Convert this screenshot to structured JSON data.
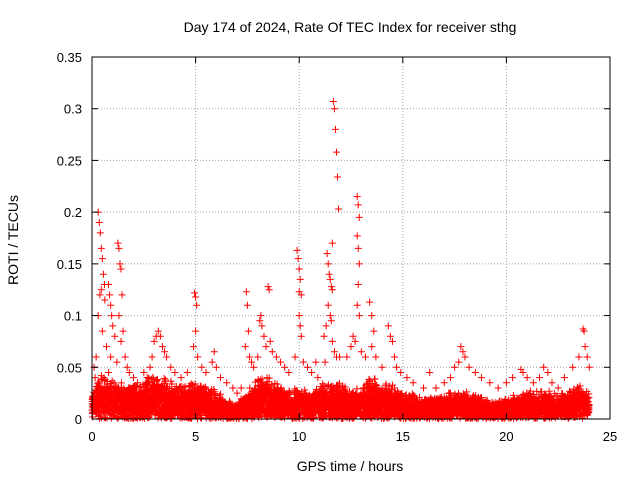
{
  "chart_data": {
    "type": "scatter",
    "title": "Day 174 of 2024, Rate Of TEC Index for receiver sthg",
    "xlabel": "GPS time / hours",
    "ylabel": "ROTI / TECUs",
    "xlim": [
      0,
      25
    ],
    "ylim": [
      0,
      0.35
    ],
    "xticks": [
      0,
      5,
      10,
      15,
      20,
      25
    ],
    "yticks": [
      0,
      0.05,
      0.1,
      0.15,
      0.2,
      0.25,
      0.3,
      0.35
    ],
    "xtick_labels": [
      "0",
      "5",
      "10",
      "15",
      "20",
      "25"
    ],
    "ytick_labels": [
      "0",
      "0.05",
      "0.1",
      "0.15",
      "0.2",
      "0.25",
      "0.3",
      "0.35"
    ],
    "grid": true,
    "marker": "+",
    "marker_color": "#ff0000",
    "series": [
      {
        "name": "ROTI",
        "points": [
          [
            0.3,
            0.2
          ],
          [
            0.35,
            0.19
          ],
          [
            0.4,
            0.18
          ],
          [
            0.45,
            0.165
          ],
          [
            0.5,
            0.155
          ],
          [
            0.55,
            0.14
          ],
          [
            0.6,
            0.13
          ],
          [
            0.45,
            0.125
          ],
          [
            0.38,
            0.12
          ],
          [
            0.62,
            0.115
          ],
          [
            0.3,
            0.1
          ],
          [
            0.5,
            0.085
          ],
          [
            0.7,
            0.07
          ],
          [
            0.2,
            0.06
          ],
          [
            0.1,
            0.05
          ],
          [
            0.8,
            0.045
          ],
          [
            0.15,
            0.04
          ],
          [
            0.8,
            0.13
          ],
          [
            0.85,
            0.12
          ],
          [
            0.9,
            0.11
          ],
          [
            0.95,
            0.1
          ],
          [
            1.0,
            0.09
          ],
          [
            1.1,
            0.08
          ],
          [
            0.9,
            0.06
          ],
          [
            1.25,
            0.17
          ],
          [
            1.3,
            0.165
          ],
          [
            1.35,
            0.15
          ],
          [
            1.4,
            0.145
          ],
          [
            1.45,
            0.12
          ],
          [
            1.3,
            0.1
          ],
          [
            1.5,
            0.085
          ],
          [
            1.4,
            0.075
          ],
          [
            1.6,
            0.06
          ],
          [
            1.2,
            0.055
          ],
          [
            1.7,
            0.05
          ],
          [
            1.8,
            0.045
          ],
          [
            2.0,
            0.04
          ],
          [
            2.2,
            0.035
          ],
          [
            2.5,
            0.045
          ],
          [
            2.8,
            0.05
          ],
          [
            2.9,
            0.06
          ],
          [
            3.0,
            0.075
          ],
          [
            3.1,
            0.08
          ],
          [
            3.2,
            0.085
          ],
          [
            3.3,
            0.08
          ],
          [
            3.4,
            0.07
          ],
          [
            3.5,
            0.065
          ],
          [
            3.6,
            0.06
          ],
          [
            3.8,
            0.05
          ],
          [
            4.0,
            0.045
          ],
          [
            4.3,
            0.04
          ],
          [
            4.6,
            0.045
          ],
          [
            4.95,
            0.122
          ],
          [
            5.0,
            0.118
          ],
          [
            5.05,
            0.11
          ],
          [
            5.0,
            0.085
          ],
          [
            4.9,
            0.07
          ],
          [
            5.1,
            0.06
          ],
          [
            5.3,
            0.05
          ],
          [
            5.5,
            0.045
          ],
          [
            5.8,
            0.055
          ],
          [
            5.9,
            0.065
          ],
          [
            6.0,
            0.05
          ],
          [
            6.2,
            0.04
          ],
          [
            6.5,
            0.035
          ],
          [
            6.8,
            0.03
          ],
          [
            7.0,
            0.025
          ],
          [
            7.2,
            0.03
          ],
          [
            7.45,
            0.123
          ],
          [
            7.5,
            0.11
          ],
          [
            7.55,
            0.085
          ],
          [
            7.4,
            0.07
          ],
          [
            7.6,
            0.06
          ],
          [
            7.7,
            0.055
          ],
          [
            7.8,
            0.05
          ],
          [
            8.0,
            0.06
          ],
          [
            8.1,
            0.095
          ],
          [
            8.15,
            0.1
          ],
          [
            8.2,
            0.09
          ],
          [
            8.3,
            0.08
          ],
          [
            8.4,
            0.07
          ],
          [
            8.5,
            0.128
          ],
          [
            8.55,
            0.125
          ],
          [
            8.6,
            0.075
          ],
          [
            8.7,
            0.065
          ],
          [
            8.9,
            0.06
          ],
          [
            9.1,
            0.055
          ],
          [
            9.3,
            0.05
          ],
          [
            9.5,
            0.045
          ],
          [
            9.9,
            0.163
          ],
          [
            9.95,
            0.155
          ],
          [
            10.0,
            0.145
          ],
          [
            10.05,
            0.135
          ],
          [
            10.0,
            0.123
          ],
          [
            10.1,
            0.12
          ],
          [
            10.0,
            0.1
          ],
          [
            10.05,
            0.09
          ],
          [
            10.1,
            0.08
          ],
          [
            9.8,
            0.06
          ],
          [
            10.2,
            0.055
          ],
          [
            10.4,
            0.05
          ],
          [
            10.6,
            0.045
          ],
          [
            10.8,
            0.055
          ],
          [
            10.9,
            0.04
          ],
          [
            11.35,
            0.16
          ],
          [
            11.4,
            0.15
          ],
          [
            11.45,
            0.14
          ],
          [
            11.5,
            0.135
          ],
          [
            11.55,
            0.128
          ],
          [
            11.6,
            0.125
          ],
          [
            11.4,
            0.11
          ],
          [
            11.5,
            0.1
          ],
          [
            11.55,
            0.095
          ],
          [
            11.3,
            0.09
          ],
          [
            11.2,
            0.08
          ],
          [
            11.6,
            0.075
          ],
          [
            11.7,
            0.065
          ],
          [
            11.8,
            0.06
          ],
          [
            11.25,
            0.055
          ],
          [
            11.65,
            0.307
          ],
          [
            11.7,
            0.3
          ],
          [
            11.75,
            0.28
          ],
          [
            11.8,
            0.258
          ],
          [
            11.85,
            0.234
          ],
          [
            11.9,
            0.203
          ],
          [
            11.6,
            0.17
          ],
          [
            11.95,
            0.06
          ],
          [
            12.3,
            0.06
          ],
          [
            12.5,
            0.07
          ],
          [
            12.6,
            0.08
          ],
          [
            12.8,
            0.215
          ],
          [
            12.85,
            0.207
          ],
          [
            12.9,
            0.195
          ],
          [
            12.8,
            0.177
          ],
          [
            12.85,
            0.165
          ],
          [
            12.9,
            0.15
          ],
          [
            12.85,
            0.13
          ],
          [
            12.8,
            0.11
          ],
          [
            12.9,
            0.1
          ],
          [
            12.7,
            0.075
          ],
          [
            13.0,
            0.065
          ],
          [
            13.2,
            0.06
          ],
          [
            13.4,
            0.113
          ],
          [
            13.5,
            0.1
          ],
          [
            13.6,
            0.085
          ],
          [
            13.5,
            0.07
          ],
          [
            13.7,
            0.06
          ],
          [
            14.0,
            0.05
          ],
          [
            14.3,
            0.09
          ],
          [
            14.4,
            0.08
          ],
          [
            14.5,
            0.075
          ],
          [
            14.6,
            0.06
          ],
          [
            14.7,
            0.05
          ],
          [
            14.9,
            0.045
          ],
          [
            15.2,
            0.04
          ],
          [
            15.5,
            0.035
          ],
          [
            16.0,
            0.03
          ],
          [
            16.3,
            0.045
          ],
          [
            16.6,
            0.03
          ],
          [
            17.0,
            0.035
          ],
          [
            17.3,
            0.04
          ],
          [
            17.5,
            0.05
          ],
          [
            17.7,
            0.055
          ],
          [
            17.8,
            0.07
          ],
          [
            17.9,
            0.065
          ],
          [
            18.0,
            0.06
          ],
          [
            18.2,
            0.05
          ],
          [
            18.5,
            0.045
          ],
          [
            18.8,
            0.04
          ],
          [
            19.2,
            0.035
          ],
          [
            19.6,
            0.03
          ],
          [
            20.0,
            0.035
          ],
          [
            20.3,
            0.04
          ],
          [
            20.7,
            0.048
          ],
          [
            20.8,
            0.045
          ],
          [
            21.0,
            0.04
          ],
          [
            21.3,
            0.035
          ],
          [
            21.6,
            0.04
          ],
          [
            21.8,
            0.05
          ],
          [
            22.0,
            0.045
          ],
          [
            22.2,
            0.035
          ],
          [
            22.5,
            0.03
          ],
          [
            22.8,
            0.04
          ],
          [
            23.2,
            0.05
          ],
          [
            23.5,
            0.06
          ],
          [
            23.7,
            0.087
          ],
          [
            23.75,
            0.085
          ],
          [
            23.8,
            0.07
          ],
          [
            23.9,
            0.06
          ],
          [
            24.0,
            0.05
          ]
        ],
        "background": {
          "x_range": [
            0,
            24
          ],
          "envelope": [
            [
              0,
              0.02
            ],
            [
              0.5,
              0.035
            ],
            [
              1,
              0.03
            ],
            [
              1.5,
              0.025
            ],
            [
              2,
              0.025
            ],
            [
              2.5,
              0.028
            ],
            [
              3,
              0.035
            ],
            [
              3.5,
              0.03
            ],
            [
              4,
              0.025
            ],
            [
              4.5,
              0.025
            ],
            [
              5,
              0.03
            ],
            [
              5.5,
              0.025
            ],
            [
              6,
              0.02
            ],
            [
              6.5,
              0.015
            ],
            [
              7,
              0.012
            ],
            [
              7.5,
              0.02
            ],
            [
              8,
              0.03
            ],
            [
              8.5,
              0.035
            ],
            [
              9,
              0.025
            ],
            [
              9.5,
              0.02
            ],
            [
              10,
              0.025
            ],
            [
              10.5,
              0.02
            ],
            [
              11,
              0.025
            ],
            [
              11.5,
              0.03
            ],
            [
              12,
              0.025
            ],
            [
              12.5,
              0.02
            ],
            [
              13,
              0.025
            ],
            [
              13.5,
              0.03
            ],
            [
              14,
              0.025
            ],
            [
              14.5,
              0.025
            ],
            [
              15,
              0.02
            ],
            [
              15.5,
              0.018
            ],
            [
              16,
              0.015
            ],
            [
              16.5,
              0.015
            ],
            [
              17,
              0.018
            ],
            [
              17.5,
              0.02
            ],
            [
              18,
              0.02
            ],
            [
              18.5,
              0.018
            ],
            [
              19,
              0.015
            ],
            [
              19.5,
              0.012
            ],
            [
              20,
              0.015
            ],
            [
              20.5,
              0.018
            ],
            [
              21,
              0.02
            ],
            [
              21.5,
              0.02
            ],
            [
              22,
              0.02
            ],
            [
              22.5,
              0.018
            ],
            [
              23,
              0.02
            ],
            [
              23.5,
              0.025
            ],
            [
              24,
              0.02
            ]
          ],
          "count": 6500
        }
      }
    ]
  }
}
